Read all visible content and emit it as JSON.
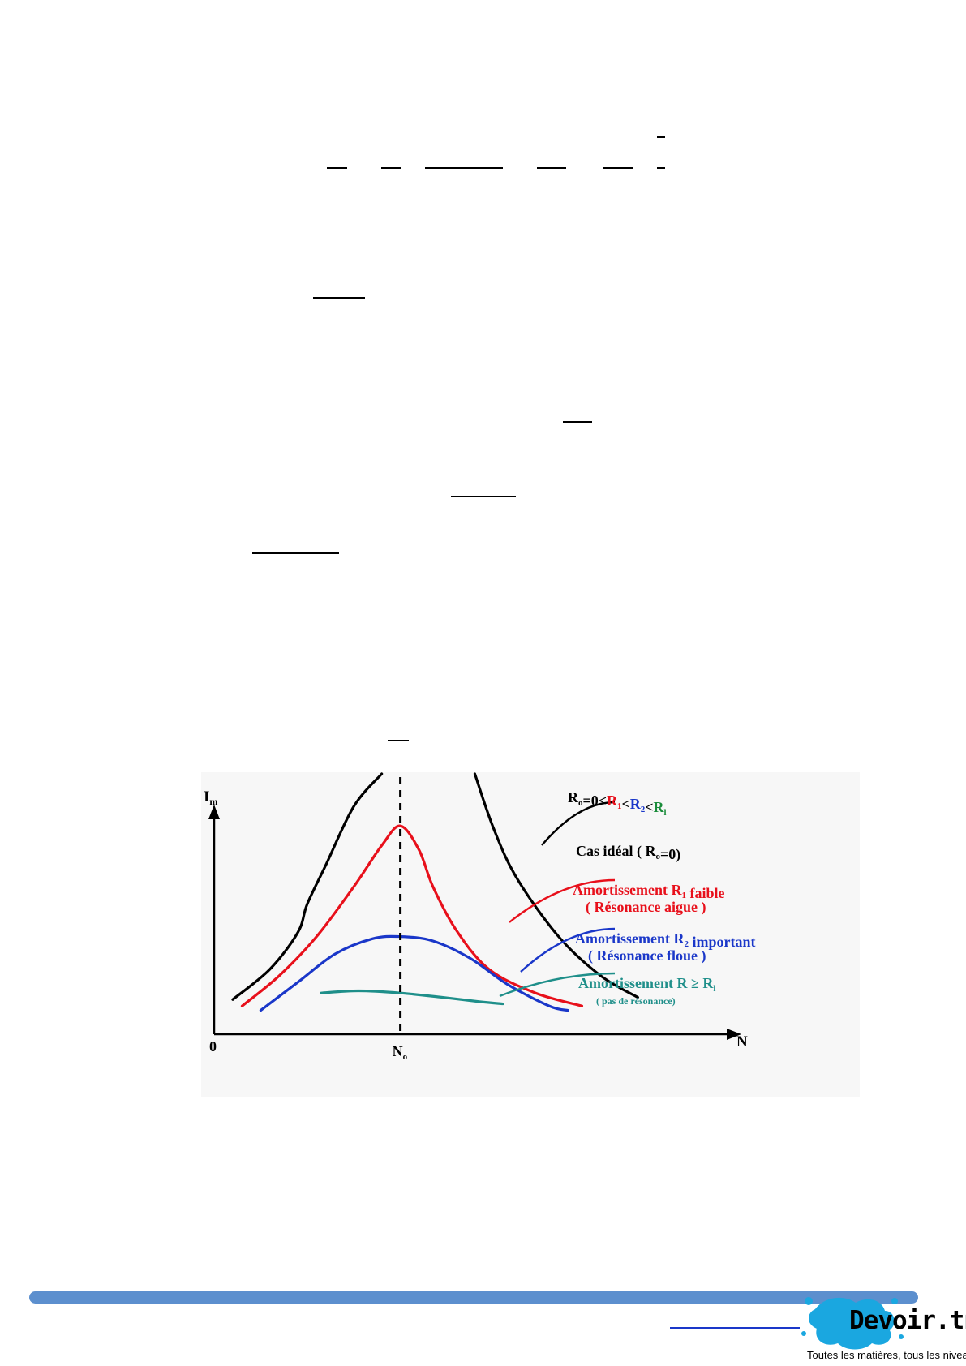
{
  "chart_data": {
    "type": "line",
    "title": "",
    "xlabel": "N",
    "ylabel": "I",
    "ylabel_subscript": "m",
    "x_ticks": {
      "origin": "0",
      "resonance": "N",
      "resonance_subscript": "o"
    },
    "legend_header": {
      "parts": [
        {
          "text": "R",
          "sub": "o",
          "color": "#000000"
        },
        {
          "text": "=0<",
          "color": "#000000"
        },
        {
          "text": "R",
          "sub": "1",
          "color": "#e8101b"
        },
        {
          "text": "<",
          "color": "#000000"
        },
        {
          "text": "R",
          "sub": "2",
          "color": "#1a37c9"
        },
        {
          "text": "<",
          "color": "#000000"
        },
        {
          "text": "R",
          "sub": "l",
          "color": "#1a8c3a"
        }
      ]
    },
    "series": [
      {
        "id": "ideal",
        "label": "Cas idéal ( R",
        "label_sub": "o",
        "label_tail": "=0)",
        "label2": "",
        "color": "#000000",
        "points": [
          [
            0.04,
            0.16
          ],
          [
            0.12,
            0.3
          ],
          [
            0.18,
            0.47
          ],
          [
            0.2,
            0.6
          ],
          [
            0.24,
            0.78
          ],
          [
            0.3,
            1.05
          ],
          [
            0.36,
            1.2
          ]
        ],
        "points_right": [
          [
            0.56,
            1.2
          ],
          [
            0.6,
            0.95
          ],
          [
            0.65,
            0.72
          ],
          [
            0.74,
            0.45
          ],
          [
            0.83,
            0.27
          ],
          [
            0.91,
            0.17
          ]
        ]
      },
      {
        "id": "r1",
        "label": "Amortissement R",
        "label_sub": "1",
        "label_tail": " faible",
        "label2": "( Résonance aigue )",
        "color": "#e8101b",
        "points": [
          [
            0.06,
            0.13
          ],
          [
            0.14,
            0.27
          ],
          [
            0.22,
            0.45
          ],
          [
            0.3,
            0.68
          ],
          [
            0.36,
            0.87
          ],
          [
            0.4,
            0.96
          ],
          [
            0.44,
            0.85
          ],
          [
            0.47,
            0.68
          ],
          [
            0.52,
            0.48
          ],
          [
            0.59,
            0.3
          ],
          [
            0.69,
            0.19
          ],
          [
            0.79,
            0.13
          ]
        ]
      },
      {
        "id": "r2",
        "label": "Amortissement R",
        "label_sub": "2",
        "label_tail": " important",
        "label2": "( Résonance floue )",
        "color": "#1a37c9",
        "points": [
          [
            0.1,
            0.11
          ],
          [
            0.18,
            0.24
          ],
          [
            0.26,
            0.37
          ],
          [
            0.34,
            0.44
          ],
          [
            0.4,
            0.45
          ],
          [
            0.47,
            0.43
          ],
          [
            0.55,
            0.35
          ],
          [
            0.63,
            0.23
          ],
          [
            0.72,
            0.13
          ],
          [
            0.76,
            0.11
          ]
        ]
      },
      {
        "id": "rl",
        "label": "Amortissement R ≥ R",
        "label_sub": "l",
        "label_tail": "",
        "label2": "( pas de résonance)",
        "color": "#1f8f8a",
        "points": [
          [
            0.23,
            0.19
          ],
          [
            0.31,
            0.2
          ],
          [
            0.4,
            0.19
          ],
          [
            0.49,
            0.17
          ],
          [
            0.57,
            0.15
          ],
          [
            0.62,
            0.14
          ]
        ]
      }
    ],
    "x_range": [
      0,
      1
    ],
    "y_range": [
      0,
      1.2
    ],
    "resonance_x": 0.4,
    "grid": false
  },
  "footer": {
    "logo_text": "Devoir.tn",
    "slogan": "Toutes les matières, tous les niveaux.."
  },
  "colors": {
    "footer_bar": "#5c8fce",
    "logo_splash": "#1aa7e0"
  }
}
